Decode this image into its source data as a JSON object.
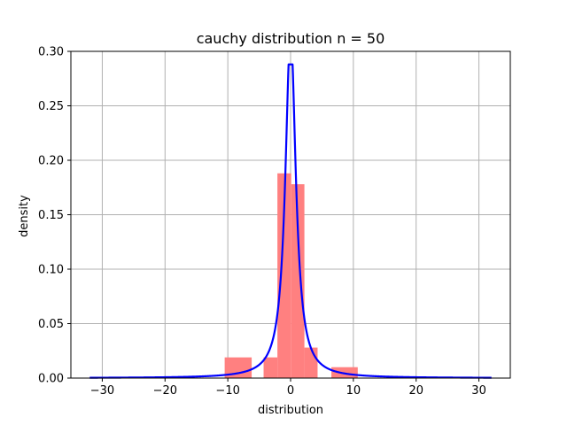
{
  "chart_data": {
    "type": "bar",
    "title": "cauchy distribution n = 50",
    "xlabel": "distribution",
    "ylabel": "density",
    "xlim": [
      -35,
      35
    ],
    "ylim": [
      0,
      0.3
    ],
    "x_ticks": [
      -30,
      -20,
      -10,
      0,
      10,
      20,
      30
    ],
    "y_ticks": [
      0.0,
      0.05,
      0.1,
      0.15,
      0.2,
      0.25,
      0.3
    ],
    "grid": true,
    "series": [
      {
        "type": "histogram",
        "color": "#ff8080",
        "bins": [
          {
            "x0": -10.5,
            "x1": -6.2,
            "density": 0.019
          },
          {
            "x0": -4.3,
            "x1": -2.1,
            "density": 0.019
          },
          {
            "x0": -2.1,
            "x1": 0.1,
            "density": 0.188
          },
          {
            "x0": 0.1,
            "x1": 2.2,
            "density": 0.178
          },
          {
            "x0": 2.2,
            "x1": 4.3,
            "density": 0.028
          },
          {
            "x0": 6.5,
            "x1": 10.7,
            "density": 0.01
          }
        ]
      },
      {
        "type": "line",
        "color": "#0000ff",
        "description_fn": "cauchy pdf, gamma=1, clipped at 0.288",
        "x_range": [
          -32,
          32
        ],
        "clip_max": 0.288
      }
    ]
  }
}
